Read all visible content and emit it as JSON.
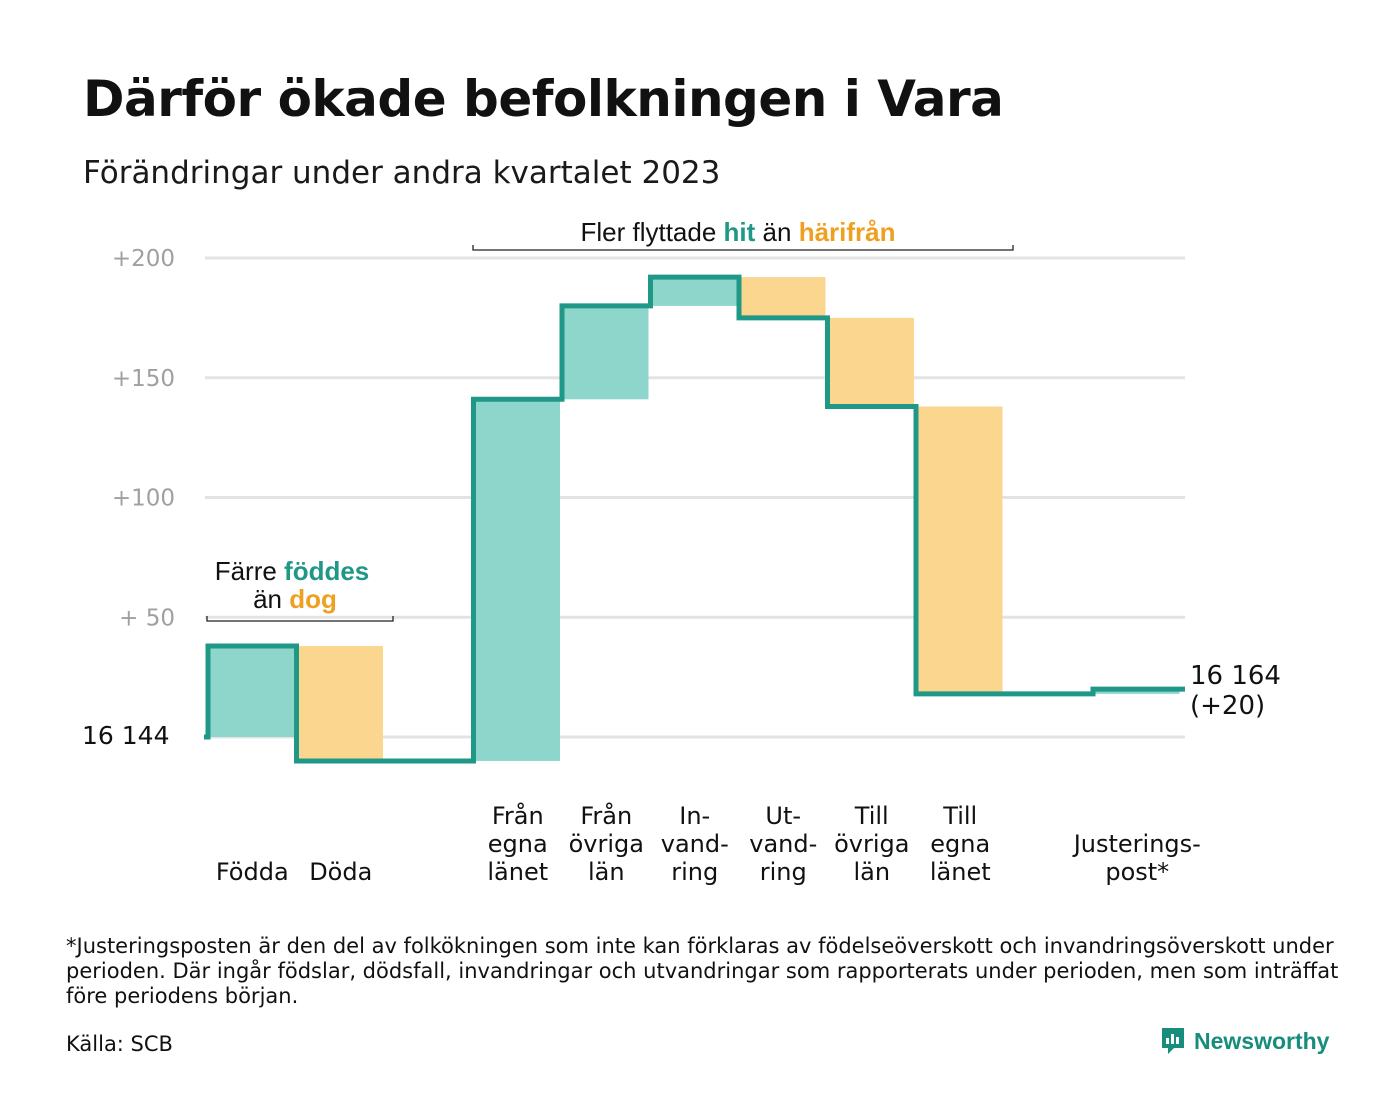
{
  "title": "Därför ökade befolkningen i Vara",
  "subtitle": "Förändringar under andra kvartalet 2023",
  "footnote": "*Justeringsposten är den del av folkökningen som inte kan förklaras av födelseöverskott och invandringsöverskott under perioden. Där ingår födslar, dödsfall, invandringar och utvandringar som rapporterats under perioden, men som inträffat före periodens början.",
  "source": "Källa: SCB",
  "brand": "Newsworthy",
  "colors": {
    "increase": "#8ed5cc",
    "decrease": "#fad68e",
    "line": "#1f9887",
    "teal_text": "#1f9887",
    "orange_text": "#f0a020",
    "grid": "#e3e3e3",
    "tick": "#a0a0a0"
  },
  "icons": {
    "brand": "newsworthy-logo-icon"
  },
  "chart_data": {
    "type": "waterfall",
    "start_label": "16  144",
    "start_value": 16144,
    "end_label": [
      "16 164",
      "(+20)"
    ],
    "end_value": 16164,
    "y_ticks": [
      {
        "value": 50,
        "label": "+  50"
      },
      {
        "value": 100,
        "label": "+100"
      },
      {
        "value": 150,
        "label": "+150"
      },
      {
        "value": 200,
        "label": "+200"
      }
    ],
    "ylim": [
      -15,
      205
    ],
    "steps": [
      {
        "category": [
          "Födda"
        ],
        "change": 38,
        "kind": "increase"
      },
      {
        "category": [
          "Döda"
        ],
        "change": -48,
        "kind": "decrease"
      },
      {
        "category": [],
        "change": 0,
        "kind": "gap"
      },
      {
        "category": [
          "Från",
          "egna",
          "länet"
        ],
        "change": 151,
        "kind": "increase"
      },
      {
        "category": [
          "Från",
          "övriga",
          "län"
        ],
        "change": 39,
        "kind": "increase"
      },
      {
        "category": [
          "In-",
          "vand-",
          "ring"
        ],
        "change": 12,
        "kind": "increase"
      },
      {
        "category": [
          "Ut-",
          "vand-",
          "ring"
        ],
        "change": -17,
        "kind": "decrease"
      },
      {
        "category": [
          "Till",
          "övriga",
          "län"
        ],
        "change": -37,
        "kind": "decrease"
      },
      {
        "category": [
          "Till",
          "egna",
          "länet"
        ],
        "change": -120,
        "kind": "decrease"
      },
      {
        "category": [],
        "change": 0,
        "kind": "gap"
      },
      {
        "category": [
          "Justerings-",
          "post*"
        ],
        "change": 2,
        "kind": "increase"
      }
    ],
    "annotations": [
      {
        "parts": [
          {
            "text": "Färre ",
            "style": "plain"
          },
          {
            "text": "föddes",
            "style": "teal"
          }
        ]
      },
      {
        "parts": [
          {
            "text": "än ",
            "style": "plain"
          },
          {
            "text": "dog",
            "style": "orange"
          }
        ]
      },
      {
        "parts": [
          {
            "text": "Fler flyttade ",
            "style": "plain"
          },
          {
            "text": "hit",
            "style": "teal"
          },
          {
            "text": " än ",
            "style": "plain"
          },
          {
            "text": "härifrån",
            "style": "orange"
          }
        ]
      }
    ]
  }
}
